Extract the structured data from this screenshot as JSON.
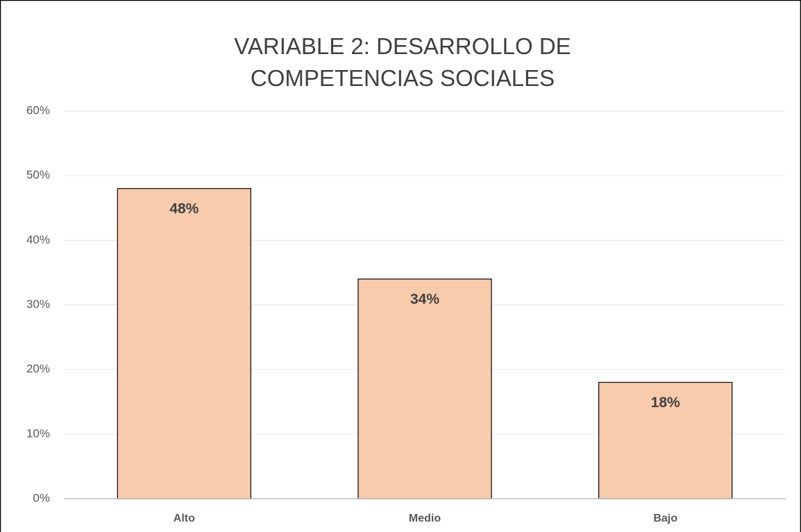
{
  "chart_data": {
    "type": "bar",
    "title": "VARIABLE 2: DESARROLLO DE COMPETENCIAS SOCIALES",
    "categories": [
      "Alto",
      "Medio",
      "Bajo"
    ],
    "values": [
      48,
      34,
      18
    ],
    "value_labels": [
      "48%",
      "34%",
      "18%"
    ],
    "color": "#f8cbad",
    "ylim": [
      0,
      60
    ],
    "yticks": [
      {
        "value": 0,
        "label": "0%"
      },
      {
        "value": 10,
        "label": "10%"
      },
      {
        "value": 20,
        "label": "20%"
      },
      {
        "value": 30,
        "label": "30%"
      },
      {
        "value": 40,
        "label": "40%"
      },
      {
        "value": 50,
        "label": "50%"
      },
      {
        "value": 60,
        "label": "60%"
      }
    ],
    "grid": true
  }
}
